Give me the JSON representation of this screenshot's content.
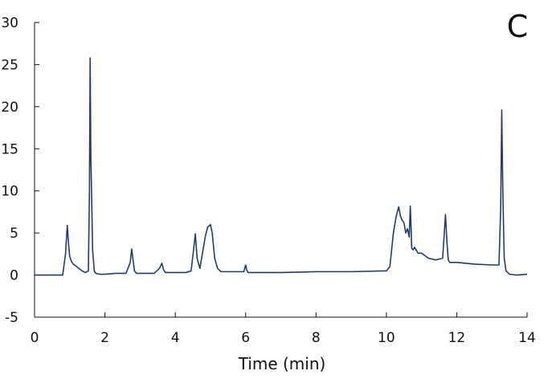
{
  "panel_label": "C",
  "chart_data": {
    "type": "line",
    "title": "",
    "xlabel": "Time (min)",
    "ylabel": "",
    "xlim": [
      0,
      14
    ],
    "ylim": [
      -5,
      30
    ],
    "xticks": [
      0,
      2,
      4,
      6,
      8,
      10,
      12,
      14
    ],
    "yticks": [
      -5,
      0,
      5,
      10,
      15,
      20,
      25,
      30
    ],
    "grid": false,
    "line_color": "#1f3d6e",
    "series": [
      {
        "x": [
          0,
          0.8,
          0.88,
          0.93,
          0.97,
          1.0,
          1.05,
          1.1,
          1.2,
          1.35,
          1.45,
          1.53,
          1.56,
          1.58,
          1.6,
          1.62,
          1.65,
          1.7,
          1.75,
          1.85,
          2.0,
          2.3,
          2.6,
          2.72,
          2.76,
          2.8,
          2.84,
          2.9,
          3.0,
          3.4,
          3.55,
          3.62,
          3.67,
          3.72,
          3.8,
          4.0,
          4.3,
          4.45,
          4.52,
          4.57,
          4.62,
          4.7,
          4.85,
          4.92,
          5.0,
          5.05,
          5.12,
          5.2,
          5.3,
          5.5,
          5.95,
          6.0,
          6.03,
          6.07,
          6.15,
          6.3,
          7.0,
          8.0,
          9.0,
          10.0,
          10.1,
          10.2,
          10.28,
          10.35,
          10.4,
          10.45,
          10.5,
          10.55,
          10.6,
          10.65,
          10.68,
          10.7,
          10.72,
          10.76,
          10.8,
          10.9,
          11.0,
          11.2,
          11.4,
          11.6,
          11.68,
          11.72,
          11.76,
          11.8,
          12.0,
          12.5,
          13.0,
          13.2,
          13.25,
          13.28,
          13.31,
          13.35,
          13.4,
          13.5,
          13.7,
          14.0
        ],
        "y": [
          0.0,
          0.0,
          2.5,
          5.9,
          3.5,
          2.2,
          1.6,
          1.3,
          1.0,
          0.5,
          0.3,
          0.5,
          10.0,
          25.8,
          14.0,
          10.0,
          3.0,
          0.4,
          0.2,
          0.1,
          0.1,
          0.2,
          0.2,
          1.5,
          3.1,
          1.8,
          0.5,
          0.2,
          0.2,
          0.2,
          0.8,
          1.4,
          0.6,
          0.3,
          0.3,
          0.3,
          0.3,
          0.5,
          3.0,
          4.9,
          2.0,
          0.8,
          4.5,
          5.7,
          6.0,
          5.0,
          2.0,
          0.8,
          0.4,
          0.4,
          0.4,
          1.2,
          0.6,
          0.3,
          0.3,
          0.3,
          0.3,
          0.4,
          0.4,
          0.5,
          1.0,
          5.0,
          7.0,
          8.1,
          7.0,
          6.5,
          6.2,
          5.0,
          5.5,
          4.5,
          8.2,
          6.0,
          3.2,
          3.0,
          3.3,
          2.6,
          2.6,
          2.0,
          1.8,
          2.0,
          7.2,
          4.0,
          1.8,
          1.5,
          1.5,
          1.3,
          1.2,
          1.2,
          8.0,
          19.6,
          10.0,
          2.0,
          0.5,
          0.1,
          0.0,
          0.1
        ]
      }
    ]
  }
}
